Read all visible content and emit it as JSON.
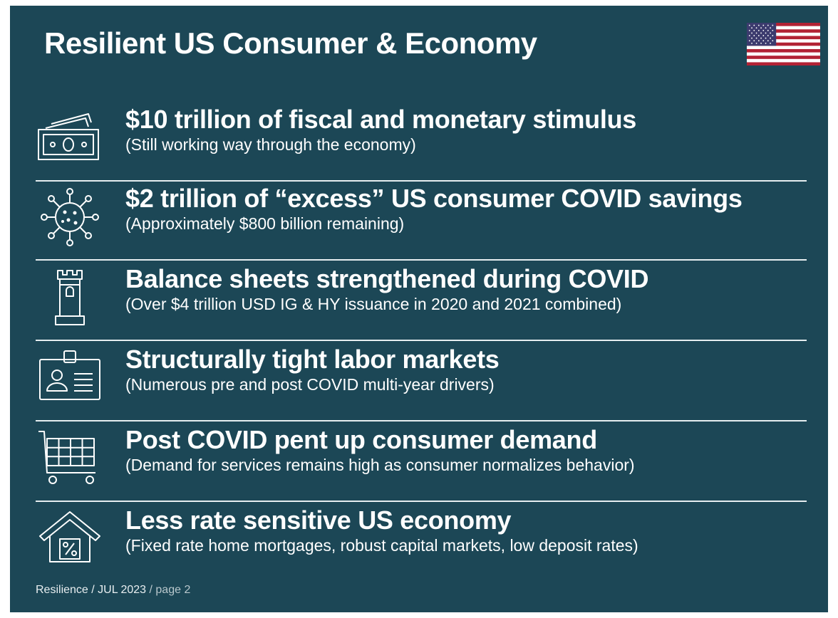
{
  "slide": {
    "title": "Resilient US Consumer & Economy",
    "flag_icon": "us-flag-icon",
    "items": [
      {
        "icon": "money-bills-icon",
        "headline": "$10 trillion of fiscal and monetary stimulus",
        "sub": "(Still working way through the economy)"
      },
      {
        "icon": "virus-icon",
        "headline": "$2 trillion of “excess” US consumer COVID savings",
        "sub": "(Approximately $800 billion remaining)"
      },
      {
        "icon": "castle-tower-icon",
        "headline": "Balance sheets strengthened during COVID",
        "sub": "(Over $4 trillion USD IG & HY issuance in 2020 and 2021 combined)"
      },
      {
        "icon": "id-badge-icon",
        "headline": "Structurally tight labor markets",
        "sub": "(Numerous pre and post COVID multi-year drivers)"
      },
      {
        "icon": "shopping-cart-icon",
        "headline": "Post COVID pent up consumer demand",
        "sub": "(Demand for services remains high as consumer normalizes behavior)"
      },
      {
        "icon": "house-percent-icon",
        "headline": "Less rate sensitive US economy",
        "sub": "(Fixed rate home mortgages, robust capital markets, low deposit rates)"
      }
    ],
    "footer": {
      "brand": "Resilience",
      "date": "JUL 2023",
      "page": "page 2"
    },
    "colors": {
      "background": "#1c4756",
      "text": "#ffffff",
      "flag_red": "#b22234",
      "flag_blue": "#3c3b6e"
    }
  }
}
